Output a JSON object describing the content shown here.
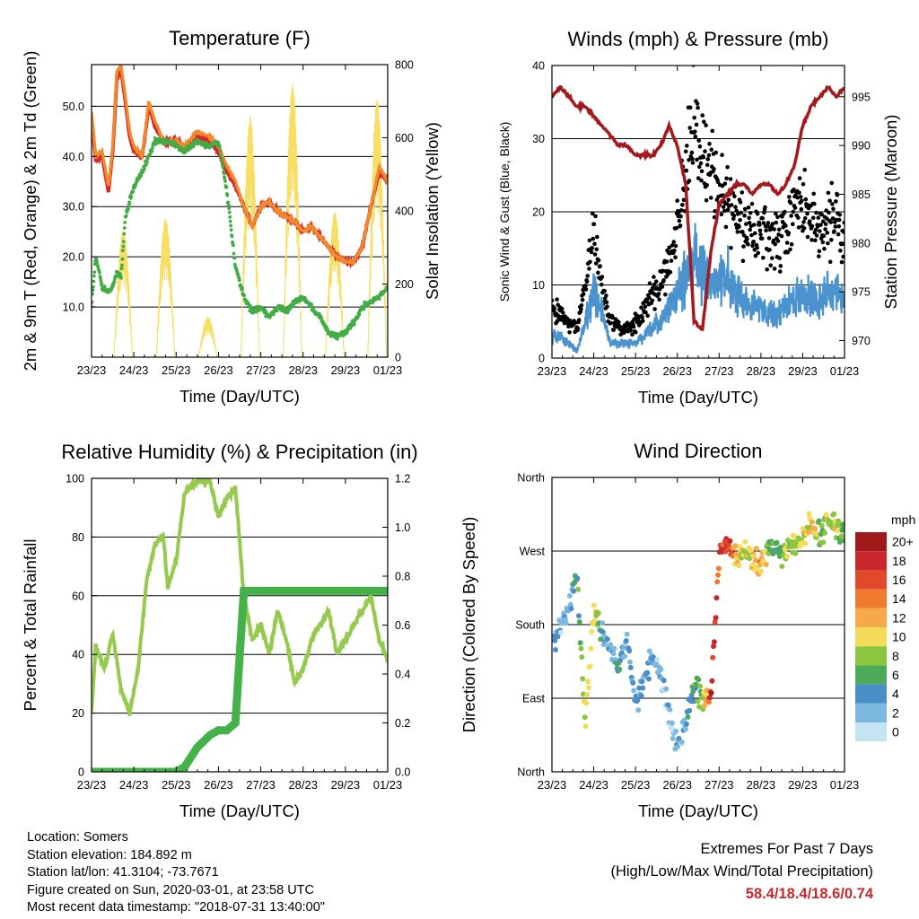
{
  "colors": {
    "temp_2m": "#d7282b",
    "temp_9m": "#f28a2c",
    "dewpoint": "#43ac47",
    "solar": "#f6df63",
    "wind": "#4a93cf",
    "gust": "#000000",
    "pressure": "#a31a1e",
    "rh": "#95ca4e",
    "precip": "#45b249",
    "extremes": "#c8282c"
  },
  "x_ticks": [
    "23/23",
    "24/23",
    "25/23",
    "26/23",
    "27/23",
    "28/23",
    "29/23",
    "01/23"
  ],
  "chart_data": [
    {
      "type": "line",
      "title": "Temperature (F)",
      "xlabel": "Time (Day/UTC)",
      "ylabel": "2m & 9m T (Red, Orange) & 2m Td (Green)",
      "ylabel_right": "Solar Insolation (Yellow)",
      "ylim": [
        0,
        58.3
      ],
      "y_ticks": [
        "10.0",
        "20.0",
        "30.0",
        "40.0",
        "50.0"
      ],
      "y_tick_values": [
        10,
        20,
        30,
        40,
        50
      ],
      "ylim_right": [
        0,
        800
      ],
      "y_ticks_right": [
        "0",
        "200",
        "400",
        "600",
        "800"
      ],
      "y_tick_values_right": [
        0,
        200,
        400,
        600,
        800
      ],
      "x": [
        0,
        0.1,
        0.25,
        0.4,
        0.5,
        0.6,
        0.7,
        0.8,
        0.9,
        1.0,
        1.2,
        1.35,
        1.5,
        1.7,
        1.85,
        2.0,
        2.2,
        2.5,
        2.8,
        3.0,
        3.2,
        3.4,
        3.6,
        3.8,
        4.0,
        4.2,
        4.4,
        4.6,
        4.8,
        5.0,
        5.2,
        5.4,
        5.6,
        5.8,
        6.0,
        6.2,
        6.4,
        6.6,
        6.8,
        7.0
      ],
      "series": [
        {
          "name": "2m T",
          "values": [
            49,
            40,
            41,
            34,
            42,
            57,
            58,
            52,
            45,
            42,
            40,
            51,
            47,
            43,
            43,
            43,
            42,
            45,
            44,
            42,
            38,
            35,
            30,
            26,
            30,
            31,
            29,
            28,
            27,
            25,
            26,
            24,
            22,
            20,
            19,
            19,
            22,
            30,
            38,
            35
          ]
        },
        {
          "name": "9m T",
          "values": [
            48,
            39,
            40,
            33,
            41,
            56,
            57,
            51,
            44,
            41,
            40,
            50,
            46,
            43,
            43,
            43,
            42,
            44,
            43,
            41,
            37,
            34,
            30,
            26,
            30,
            31,
            29,
            28,
            27,
            25,
            26,
            24,
            22,
            20,
            19,
            19,
            22,
            30,
            37,
            35
          ]
        },
        {
          "name": "2m Td",
          "values": [
            10,
            20,
            14,
            13,
            14,
            17,
            16,
            28,
            31,
            34,
            37,
            40,
            43,
            43,
            43,
            42,
            41,
            43,
            42,
            43,
            33,
            18,
            12,
            9,
            10,
            8,
            10,
            9,
            11,
            12,
            10,
            8,
            5,
            4,
            5,
            7,
            10,
            11,
            12,
            14
          ]
        }
      ],
      "series_right": [
        {
          "name": "Solar",
          "peak_times": [
            0.75,
            1.75,
            2.75,
            3.75,
            4.75,
            5.75,
            6.75
          ],
          "peaks": [
            350,
            380,
            110,
            660,
            750,
            400,
            710
          ]
        }
      ]
    },
    {
      "type": "line",
      "title": "Winds (mph) & Pressure (mb)",
      "xlabel": "Time (Day/UTC)",
      "ylabel": "Sonic Wind & Gust (Blue, Black)",
      "ylabel_right": "Station Pressure (Maroon)",
      "ylim": [
        0,
        40
      ],
      "y_ticks": [
        "0",
        "10",
        "20",
        "30",
        "40"
      ],
      "y_tick_values": [
        0,
        10,
        20,
        30,
        40
      ],
      "ylim_right": [
        968.2,
        998.2
      ],
      "y_ticks_right": [
        "970",
        "975",
        "980",
        "985",
        "990",
        "995"
      ],
      "y_tick_values_right": [
        970,
        975,
        980,
        985,
        990,
        995
      ],
      "x": [
        0,
        0.2,
        0.4,
        0.6,
        0.8,
        1.0,
        1.2,
        1.4,
        1.6,
        1.8,
        2.0,
        2.2,
        2.4,
        2.6,
        2.8,
        3.0,
        3.2,
        3.4,
        3.6,
        3.8,
        4.0,
        4.2,
        4.4,
        4.6,
        4.8,
        5.0,
        5.2,
        5.4,
        5.6,
        5.8,
        6.0,
        6.2,
        6.4,
        6.6,
        6.8,
        7.0
      ],
      "series": [
        {
          "name": "Sonic Wind",
          "values": [
            3,
            3,
            2,
            1,
            5,
            9,
            6,
            2,
            2,
            2,
            2,
            3,
            4,
            5,
            7,
            9,
            11,
            14,
            12,
            10,
            11,
            11,
            9,
            8,
            7,
            7,
            6,
            6,
            7,
            8,
            9,
            8,
            8,
            9,
            9,
            7
          ]
        },
        {
          "name": "Gust",
          "values": [
            7,
            6,
            5,
            4,
            10,
            17,
            10,
            5,
            4,
            4,
            5,
            6,
            9,
            10,
            14,
            19,
            24,
            31,
            29,
            25,
            24,
            22,
            19,
            18,
            17,
            17,
            16,
            16,
            17,
            20,
            22,
            18,
            17,
            19,
            20,
            15
          ]
        },
        {
          "name": "Station Pressure",
          "values": [
            995,
            996,
            995,
            994,
            994,
            993,
            992,
            991,
            990,
            990,
            989,
            989,
            989,
            990,
            992,
            990,
            986,
            972,
            971,
            979,
            984,
            985,
            986,
            986,
            985,
            986,
            986,
            985,
            986,
            988,
            992,
            994,
            995,
            996,
            995,
            996
          ]
        }
      ]
    },
    {
      "type": "line",
      "title": "Relative Humidity (%) & Precipitation (in)",
      "xlabel": "Time (Day/UTC)",
      "ylabel": "Percent & Total Rainfall",
      "ylim": [
        0,
        100
      ],
      "y_ticks": [
        "0",
        "20",
        "40",
        "60",
        "80",
        "100"
      ],
      "y_tick_values": [
        0,
        20,
        40,
        60,
        80,
        100
      ],
      "ylim_right": [
        0,
        1.2
      ],
      "y_ticks_right": [
        "0.0",
        "0.2",
        "0.4",
        "0.6",
        "0.8",
        "1.0",
        "1.2"
      ],
      "y_tick_values_right": [
        0,
        0.2,
        0.4,
        0.6,
        0.8,
        1.0,
        1.2
      ],
      "x": [
        0,
        0.1,
        0.3,
        0.5,
        0.7,
        0.9,
        1.1,
        1.3,
        1.5,
        1.7,
        1.8,
        2.0,
        2.2,
        2.5,
        2.8,
        3.0,
        3.2,
        3.4,
        3.6,
        3.8,
        4.0,
        4.2,
        4.4,
        4.6,
        4.8,
        5.0,
        5.2,
        5.4,
        5.6,
        5.8,
        6.0,
        6.2,
        6.4,
        6.6,
        6.8,
        7.0
      ],
      "series": [
        {
          "name": "Relative Humidity",
          "values": [
            20,
            43,
            35,
            47,
            28,
            20,
            35,
            65,
            78,
            80,
            63,
            72,
            95,
            99,
            99,
            87,
            93,
            97,
            60,
            45,
            50,
            40,
            55,
            45,
            30,
            35,
            45,
            50,
            55,
            40,
            45,
            50,
            55,
            60,
            45,
            38
          ]
        },
        {
          "name": "Precipitation",
          "values": [
            0,
            0,
            0,
            0,
            0,
            0,
            0,
            0,
            0,
            0,
            0,
            0,
            0.02,
            0.1,
            0.15,
            0.17,
            0.17,
            0.2,
            0.74,
            0.74,
            0.74,
            0.74,
            0.74,
            0.74,
            0.74,
            0.74,
            0.74,
            0.74,
            0.74,
            0.74,
            0.74,
            0.74,
            0.74,
            0.74,
            0.74,
            0.74
          ]
        }
      ]
    },
    {
      "type": "scatter",
      "title": "Wind Direction",
      "xlabel": "Time (Day/UTC)",
      "ylabel": "Direction (Colored By Speed)",
      "ylim": [
        0,
        360
      ],
      "y_ticks": [
        "North",
        "East",
        "South",
        "West",
        "North"
      ],
      "y_tick_values": [
        0,
        90,
        180,
        270,
        360
      ],
      "colorbar_title": "mph",
      "colorbar_labels": [
        "20+",
        "18",
        "16",
        "14",
        "12",
        "10",
        "8",
        "6",
        "4",
        "2",
        "0"
      ],
      "colorbar_colors": [
        "#a01a1c",
        "#c8282c",
        "#e04a2a",
        "#f07a30",
        "#f7a84a",
        "#f4dc5a",
        "#8cc63f",
        "#4caa5a",
        "#4a8ec8",
        "#7db8e0",
        "#c4e4f4"
      ],
      "x": [
        0.1,
        0.25,
        0.4,
        0.6,
        0.8,
        1.0,
        1.2,
        1.4,
        1.6,
        1.8,
        2.0,
        2.2,
        2.4,
        2.6,
        2.8,
        3.0,
        3.2,
        3.4,
        3.6,
        3.8,
        4.0,
        4.2,
        4.4,
        4.6,
        4.8,
        5.0,
        5.2,
        5.4,
        5.6,
        5.8,
        6.0,
        6.2,
        6.4,
        6.6,
        6.8,
        7.0
      ],
      "series": [
        {
          "name": "Direction",
          "values": [
            165,
            180,
            200,
            240,
            60,
            200,
            175,
            150,
            130,
            160,
            85,
            110,
            140,
            120,
            70,
            30,
            60,
            100,
            95,
            90,
            270,
            280,
            265,
            270,
            260,
            250,
            275,
            270,
            265,
            280,
            290,
            300,
            290,
            305,
            300,
            295
          ]
        },
        {
          "name": "Speed",
          "values": [
            4,
            3,
            2,
            5,
            9,
            11,
            3,
            2,
            5,
            2,
            4,
            3,
            3,
            1,
            2,
            2,
            3,
            6,
            8,
            18,
            16,
            17,
            12,
            9,
            10,
            12,
            7,
            5,
            9,
            8,
            10,
            11,
            7,
            8,
            9,
            6
          ]
        }
      ]
    }
  ],
  "info": {
    "location": "Location: Somers",
    "elevation": "Station elevation: 184.892 m",
    "latlon": "Station lat/lon: 41.3104; -73.7671",
    "created": "Figure created on Sun, 2020-03-01, at 23:58 UTC",
    "timestamp": "Most recent data timestamp: \"2018-07-31 13:40:00\""
  },
  "extremes": {
    "title": "Extremes For Past 7 Days",
    "subtitle": "(High/Low/Max Wind/Total Precipitation)",
    "values": "58.4/18.4/18.6/0.74"
  }
}
